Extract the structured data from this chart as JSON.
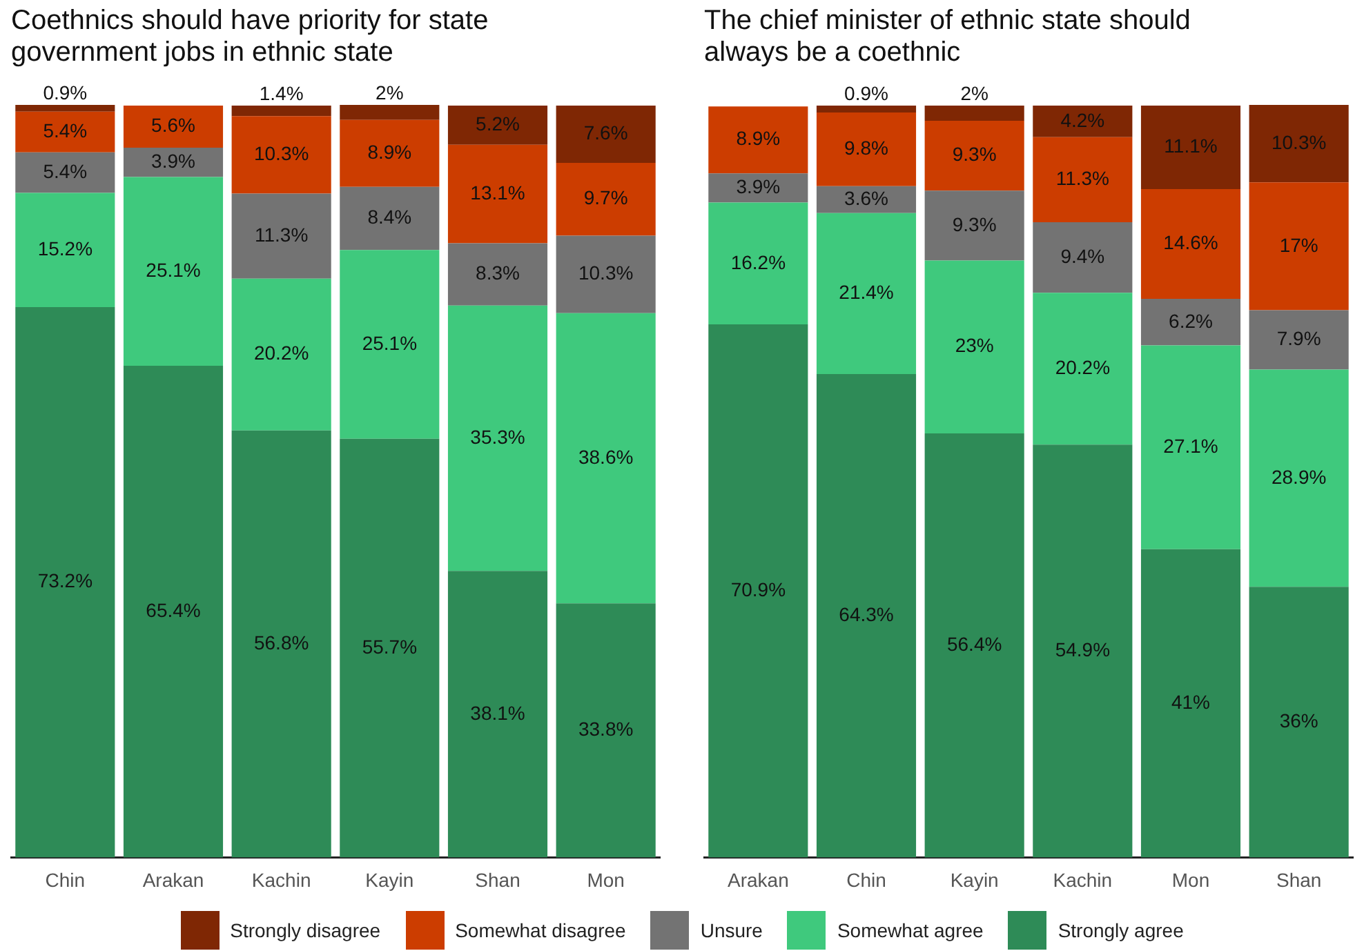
{
  "chart_data": [
    {
      "type": "bar",
      "stacked": true,
      "title": "Coethnics should have priority for state government jobs in ethnic state",
      "categories": [
        "Chin",
        "Arakan",
        "Kachin",
        "Kayin",
        "Shan",
        "Mon"
      ],
      "legend": "bottom",
      "tick_labels": "x",
      "grid": false,
      "series": [
        {
          "name": "Strongly agree",
          "color": "#2e8b57",
          "values": [
            73.2,
            65.4,
            56.8,
            55.7,
            38.1,
            33.8
          ],
          "value_labels": [
            "73.2%",
            "65.4%",
            "56.8%",
            "55.7%",
            "38.1%",
            "33.8%"
          ]
        },
        {
          "name": "Somewhat agree",
          "color": "#3fc97d",
          "values": [
            15.2,
            25.1,
            20.2,
            25.1,
            35.3,
            38.6
          ],
          "value_labels": [
            "15.2%",
            "25.1%",
            "20.2%",
            "25.1%",
            "35.3%",
            "38.6%"
          ]
        },
        {
          "name": "Unsure",
          "color": "#737373",
          "values": [
            5.4,
            3.9,
            11.3,
            8.4,
            8.3,
            10.3
          ],
          "value_labels": [
            "5.4%",
            "3.9%",
            "11.3%",
            "8.4%",
            "8.3%",
            "10.3%"
          ]
        },
        {
          "name": "Somewhat disagree",
          "color": "#cc3d00",
          "values": [
            5.4,
            5.6,
            10.3,
            8.9,
            13.1,
            9.7
          ],
          "value_labels": [
            "5.4%",
            "5.6%",
            "10.3%",
            "8.9%",
            "13.1%",
            "9.7%"
          ]
        },
        {
          "name": "Strongly disagree",
          "color": "#7f2704",
          "values": [
            0.9,
            null,
            1.4,
            2,
            5.2,
            7.6
          ],
          "value_labels": [
            "0.9%",
            null,
            "1.4%",
            "2%",
            "5.2%",
            "7.6%"
          ]
        }
      ]
    },
    {
      "type": "bar",
      "stacked": true,
      "title": "The chief minister of ethnic state should always be a coethnic",
      "categories": [
        "Arakan",
        "Chin",
        "Kayin",
        "Kachin",
        "Mon",
        "Shan"
      ],
      "tick_labels": "x",
      "grid": false,
      "series": [
        {
          "color": "#2e8b57",
          "values": [
            70.9,
            64.3,
            56.4,
            54.9,
            41,
            36
          ],
          "value_labels": [
            "70.9%",
            "64.3%",
            "56.4%",
            "54.9%",
            "41%",
            "36%"
          ]
        },
        {
          "color": "#3fc97d",
          "values": [
            16.2,
            21.4,
            23,
            20.2,
            27.1,
            28.9
          ],
          "value_labels": [
            "16.2%",
            "21.4%",
            "23%",
            "20.2%",
            "27.1%",
            "28.9%"
          ]
        },
        {
          "color": "#737373",
          "values": [
            3.9,
            3.6,
            9.3,
            9.4,
            6.2,
            7.9
          ],
          "value_labels": [
            "3.9%",
            "3.6%",
            "9.3%",
            "9.4%",
            "6.2%",
            "7.9%"
          ]
        },
        {
          "color": "#cc3d00",
          "values": [
            8.9,
            9.8,
            9.3,
            11.3,
            14.6,
            17
          ],
          "value_labels": [
            "8.9%",
            "9.8%",
            "9.3%",
            "11.3%",
            "14.6%",
            "17%"
          ]
        },
        {
          "color": "#7f2704",
          "values": [
            null,
            0.9,
            2,
            4.2,
            11.1,
            10.3
          ],
          "value_labels": [
            null,
            "0.9%",
            "2%",
            "4.2%",
            "11.1%",
            "10.3%"
          ]
        }
      ]
    }
  ]
}
